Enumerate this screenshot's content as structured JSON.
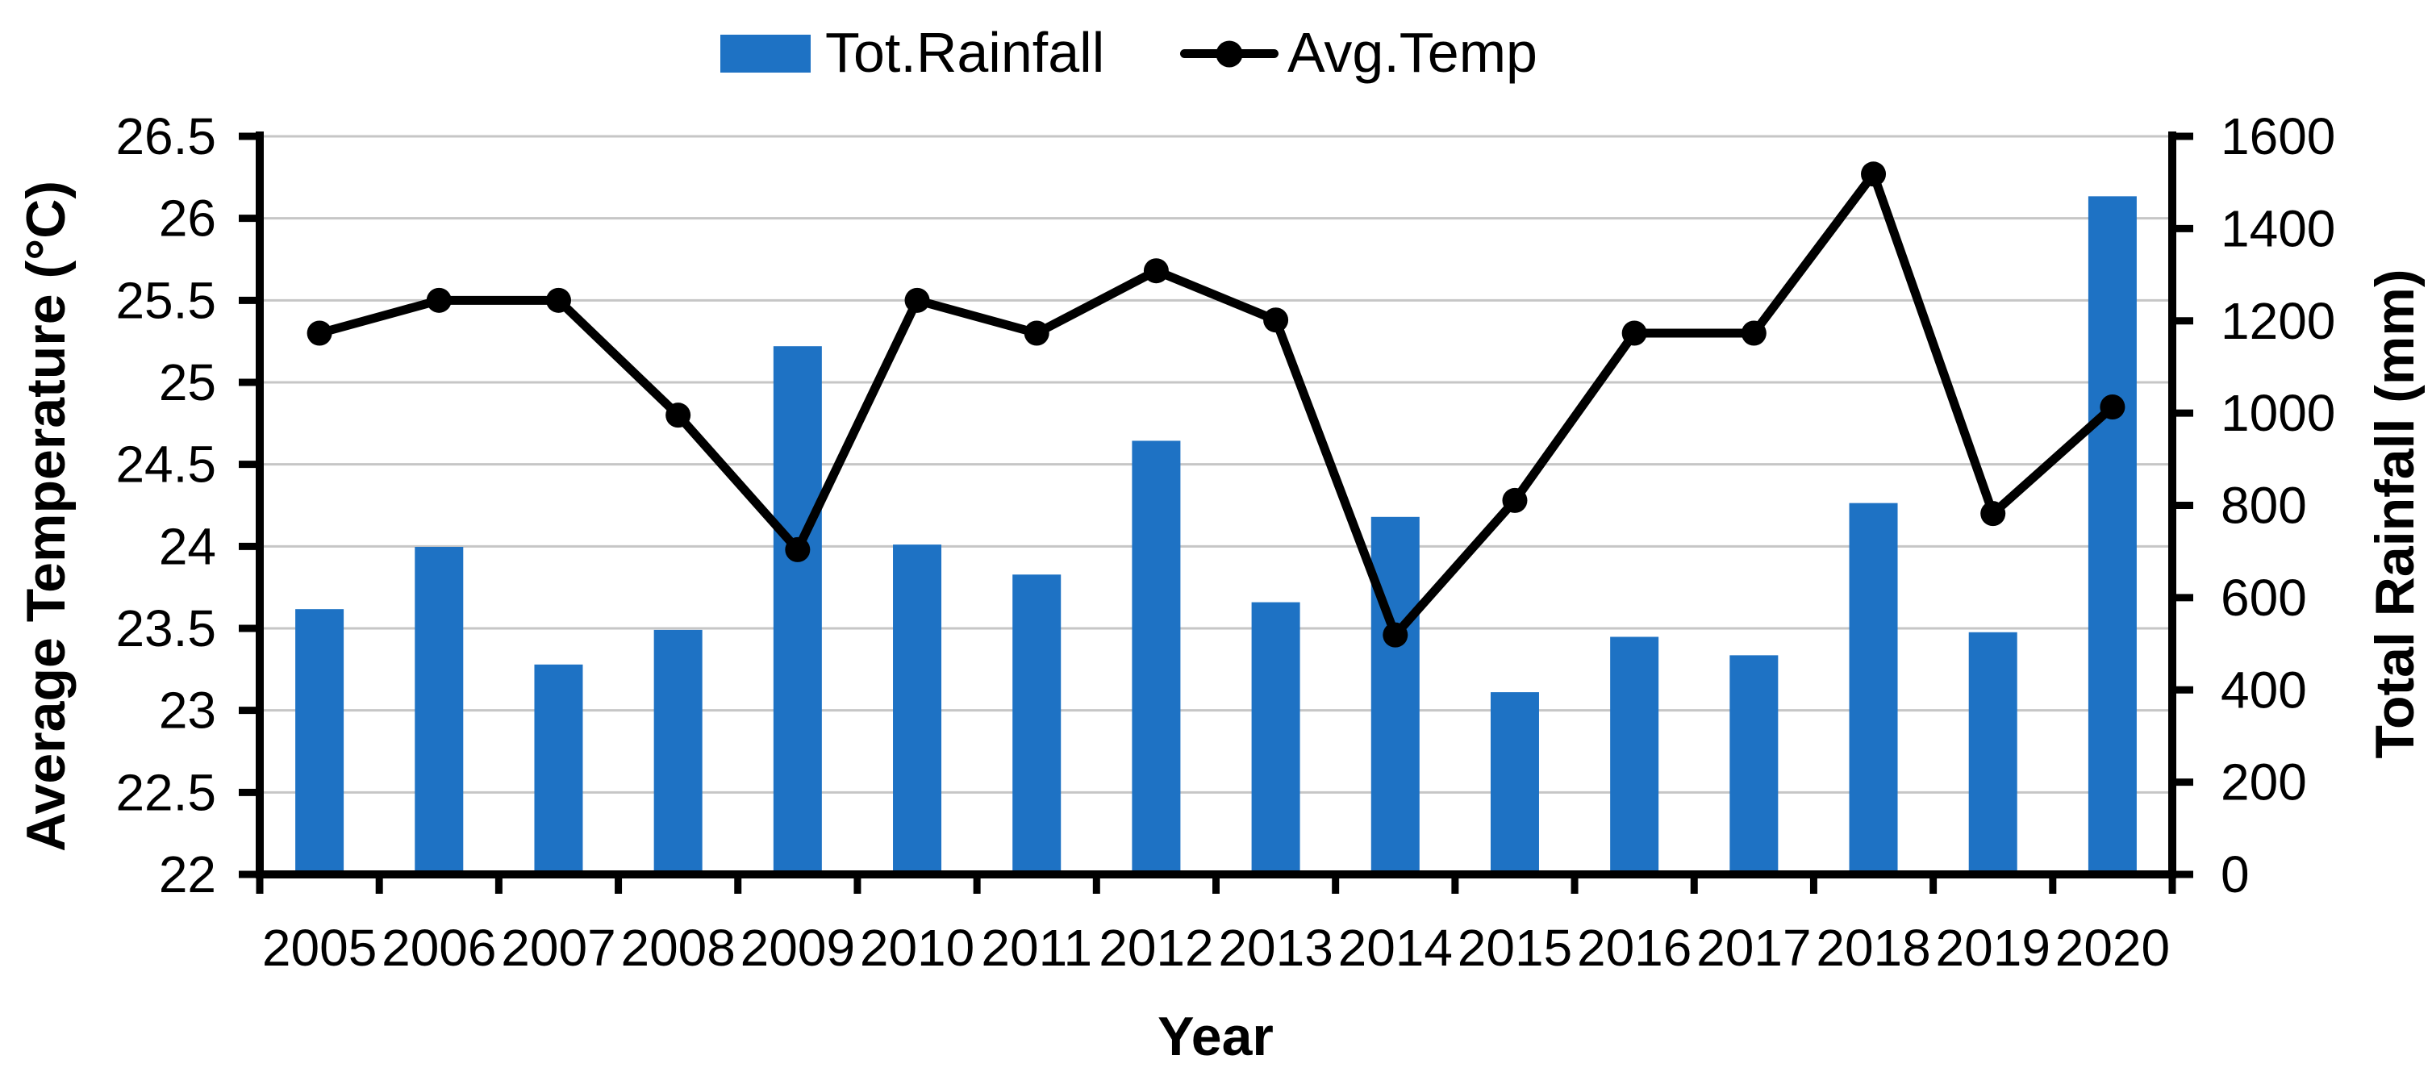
{
  "chart_data": {
    "type": "combo",
    "categories": [
      "2005",
      "2006",
      "2007",
      "2008",
      "2009",
      "2010",
      "2011",
      "2012",
      "2013",
      "2014",
      "2015",
      "2016",
      "2017",
      "2018",
      "2019",
      "2020"
    ],
    "series": [
      {
        "name": "Tot.Rainfall",
        "type": "bar",
        "axis": "right",
        "color": "#1E72C4",
        "values": [
          575,
          710,
          455,
          530,
          1145,
          715,
          650,
          940,
          590,
          775,
          395,
          515,
          475,
          805,
          525,
          1470
        ]
      },
      {
        "name": "Avg.Temp",
        "type": "line",
        "axis": "left",
        "color": "#000000",
        "marker": "circle",
        "values": [
          25.3,
          25.5,
          25.5,
          24.8,
          23.98,
          25.5,
          25.3,
          25.68,
          25.38,
          23.46,
          24.28,
          25.3,
          25.3,
          26.27,
          24.2,
          24.85
        ]
      }
    ],
    "xlabel": "Year",
    "left_axis": {
      "label": "Average Temperature (°C)",
      "min": 22,
      "max": 26.5,
      "step": 0.5,
      "ticks": [
        "26.5",
        "26",
        "25.5",
        "25",
        "24.5",
        "24",
        "23.5",
        "23",
        "22.5",
        "22"
      ]
    },
    "right_axis": {
      "label": "Total Rainfall (mm)",
      "min": 0,
      "max": 1600,
      "step": 200,
      "ticks": [
        "1600",
        "1400",
        "1200",
        "1000",
        "800",
        "600",
        "400",
        "200",
        "0"
      ]
    },
    "grid": {
      "show": true,
      "color": "#C6C6C6",
      "follows": "left-axis"
    },
    "legend_position": "top-center",
    "axis_color": "#000000"
  }
}
